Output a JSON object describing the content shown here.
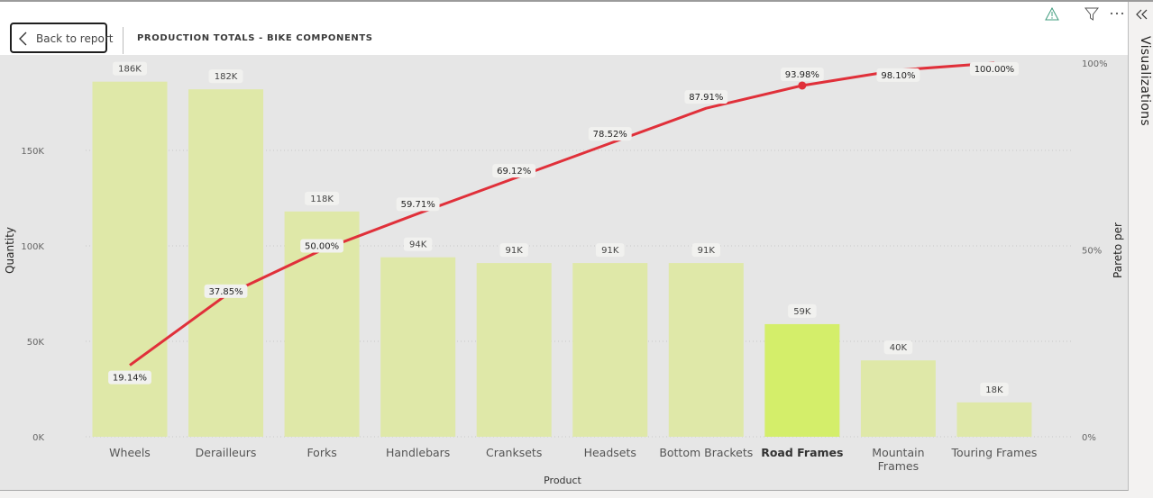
{
  "header": {
    "back_label": "Back to report",
    "title": "PRODUCTION TOTALS - BIKE COMPONENTS",
    "icons": [
      "warning-icon",
      "filter-icon",
      "more-options-icon"
    ]
  },
  "viz_pane": {
    "label": "Visualizations",
    "collapse_icon": "double-chevron-left-icon"
  },
  "colors": {
    "bar": "#dfe8a8",
    "bar_highlight": "#d4ee6a",
    "line": "#e0303a",
    "plot_bg": "#e6e6e6",
    "label_bg": "#f1f1ef"
  },
  "chart_data": {
    "type": "bar",
    "title": "PRODUCTION TOTALS - BIKE COMPONENTS",
    "xlabel": "Product",
    "ylabel": "Quantity",
    "y2label": "Pareto per",
    "categories": [
      "Wheels",
      "Derailleurs",
      "Forks",
      "Handlebars",
      "Cranksets",
      "Headsets",
      "Bottom Brackets",
      "Road Frames",
      "Mountain Frames",
      "Touring Frames"
    ],
    "highlighted_category": "Road Frames",
    "series": [
      {
        "name": "Quantity",
        "type": "bar",
        "axis": "left",
        "values": [
          186000,
          182000,
          118000,
          94000,
          91000,
          91000,
          91000,
          59000,
          40000,
          18000
        ],
        "labels": [
          "186K",
          "182K",
          "118K",
          "94K",
          "91K",
          "91K",
          "91K",
          "59K",
          "40K",
          "18K"
        ]
      },
      {
        "name": "Pareto per",
        "type": "line",
        "axis": "right",
        "values": [
          19.14,
          37.85,
          50.0,
          59.71,
          69.12,
          78.52,
          87.91,
          93.98,
          98.1,
          100.0
        ],
        "labels": [
          "19.14%",
          "37.85%",
          "50.00%",
          "59.71%",
          "69.12%",
          "78.52%",
          "87.91%",
          "93.98%",
          "98.10%",
          "100.00%"
        ]
      }
    ],
    "y_ticks": [
      "0K",
      "50K",
      "100K",
      "150K"
    ],
    "y_tick_values": [
      0,
      50000,
      100000,
      150000
    ],
    "ylim": [
      0,
      196000
    ],
    "y2_ticks": [
      "0%",
      "50%",
      "100%"
    ],
    "y2lim": [
      0,
      100
    ],
    "grid": true,
    "legend": "none"
  }
}
